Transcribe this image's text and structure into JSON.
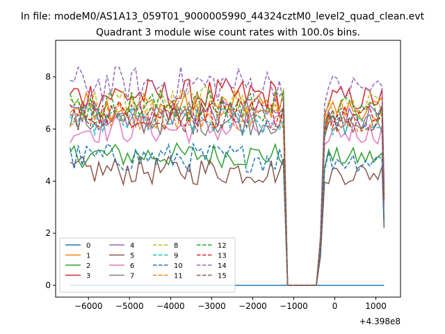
{
  "figure": {
    "suptitle": "In file: modeM0/AS1A13_059T01_9000005990_44324cztM0_level2_quad_clean.evt"
  },
  "chart_data": {
    "type": "line",
    "title": "Quadrant 3 module wise count rates with 100.0s bins.",
    "xlabel": "",
    "ylabel": "",
    "offset_text": "+4.398e8",
    "xlim": [
      -6800,
      1600
    ],
    "ylim": [
      -0.45,
      9.4
    ],
    "xticks": [
      -6000,
      -5000,
      -4000,
      -3000,
      -2000,
      -1000,
      0,
      1000
    ],
    "xtick_labels": [
      "−6000",
      "−5000",
      "−4000",
      "−3000",
      "−2000",
      "−1000",
      "0",
      "1000"
    ],
    "yticks": [
      0,
      2,
      4,
      6,
      8
    ],
    "ytick_labels": [
      "0",
      "2",
      "4",
      "6",
      "8"
    ],
    "grid": false,
    "legend": {
      "location": "lower-left",
      "columns": 4
    },
    "x_segment_a": [
      -6450,
      100,
      -1250
    ],
    "x_segment_b": [
      -350,
      100,
      1150
    ],
    "x_end": 1200,
    "series": [
      {
        "name": "0",
        "color": "#1f77b4",
        "style": "solid",
        "mean": 0.0,
        "amp": 0.0
      },
      {
        "name": "1",
        "color": "#ff7f0e",
        "style": "solid",
        "mean": 6.9,
        "amp": 0.35
      },
      {
        "name": "2",
        "color": "#2ca02c",
        "style": "solid",
        "mean": 5.0,
        "amp": 0.3
      },
      {
        "name": "3",
        "color": "#d62728",
        "style": "solid",
        "mean": 7.3,
        "amp": 0.4
      },
      {
        "name": "4",
        "color": "#9467bd",
        "style": "solid",
        "mean": 6.6,
        "amp": 0.35
      },
      {
        "name": "5",
        "color": "#8c564b",
        "style": "solid",
        "mean": 4.4,
        "amp": 0.35
      },
      {
        "name": "6",
        "color": "#e377c2",
        "style": "solid",
        "mean": 6.0,
        "amp": 0.35
      },
      {
        "name": "7",
        "color": "#7f7f7f",
        "style": "solid",
        "mean": 6.3,
        "amp": 0.35
      },
      {
        "name": "8",
        "color": "#bcbd22",
        "style": "dashed",
        "mean": 7.0,
        "amp": 0.4
      },
      {
        "name": "9",
        "color": "#17becf",
        "style": "dashed",
        "mean": 6.3,
        "amp": 0.35
      },
      {
        "name": "10",
        "color": "#1f77b4",
        "style": "dashed",
        "mean": 4.9,
        "amp": 0.35
      },
      {
        "name": "11",
        "color": "#ff7f0e",
        "style": "dashed",
        "mean": 6.5,
        "amp": 0.35
      },
      {
        "name": "12",
        "color": "#2ca02c",
        "style": "dashed",
        "mean": 6.9,
        "amp": 0.4
      },
      {
        "name": "13",
        "color": "#d62728",
        "style": "dashed",
        "mean": 6.6,
        "amp": 0.35
      },
      {
        "name": "14",
        "color": "#9467bd",
        "style": "dashed",
        "mean": 7.7,
        "amp": 0.45
      },
      {
        "name": "15",
        "color": "#8c564b",
        "style": "dashed",
        "mean": 6.5,
        "amp": 0.4
      }
    ]
  }
}
